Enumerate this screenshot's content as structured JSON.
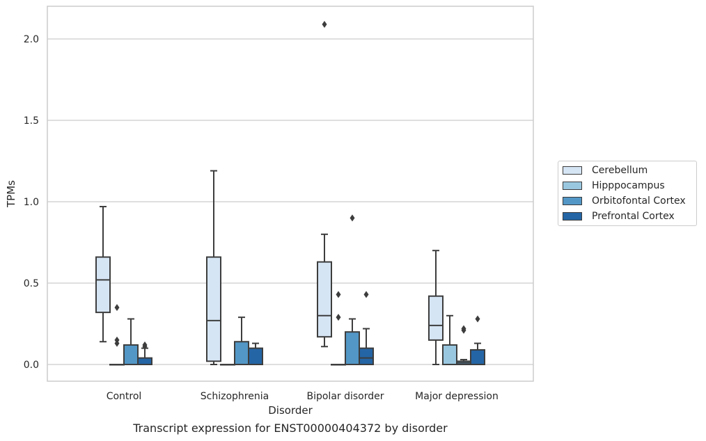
{
  "caption": "Transcript expression for ENST00000404372 by disorder",
  "chart_data": {
    "type": "box",
    "title": "",
    "xlabel": "Disorder",
    "ylabel": "TPMs",
    "ylim": [
      -0.1,
      2.2
    ],
    "yticks": [
      "0.0",
      "0.5",
      "1.0",
      "1.5",
      "2.0"
    ],
    "grid": "horizontal",
    "legend_position": "right",
    "categories": [
      "Control",
      "Schizophrenia",
      "Bipolar disorder",
      "Major depression"
    ],
    "series": [
      {
        "name": "Cerebellum",
        "color": "#d6e5f4",
        "boxes": [
          {
            "whislo": 0.14,
            "q1": 0.32,
            "med": 0.52,
            "q3": 0.66,
            "whishi": 0.97,
            "fliers": []
          },
          {
            "whislo": 0.0,
            "q1": 0.02,
            "med": 0.27,
            "q3": 0.66,
            "whishi": 1.19,
            "fliers": []
          },
          {
            "whislo": 0.11,
            "q1": 0.17,
            "med": 0.3,
            "q3": 0.63,
            "whishi": 0.8,
            "fliers": [
              2.09
            ]
          },
          {
            "whislo": 0.0,
            "q1": 0.15,
            "med": 0.24,
            "q3": 0.42,
            "whishi": 0.7,
            "fliers": []
          }
        ]
      },
      {
        "name": "Hipppocampus",
        "color": "#9ac7e0",
        "boxes": [
          {
            "whislo": 0.0,
            "q1": 0.0,
            "med": 0.0,
            "q3": 0.0,
            "whishi": 0.0,
            "fliers": [
              0.13,
              0.15,
              0.35
            ]
          },
          {
            "whislo": 0.0,
            "q1": 0.0,
            "med": 0.0,
            "q3": 0.0,
            "whishi": 0.0,
            "fliers": []
          },
          {
            "whislo": 0.0,
            "q1": 0.0,
            "med": 0.0,
            "q3": 0.0,
            "whishi": 0.0,
            "fliers": [
              0.29,
              0.43
            ]
          },
          {
            "whislo": 0.0,
            "q1": 0.0,
            "med": 0.0,
            "q3": 0.12,
            "whishi": 0.3,
            "fliers": []
          }
        ]
      },
      {
        "name": "Orbitofontal Cortex",
        "color": "#5297c6",
        "boxes": [
          {
            "whislo": 0.0,
            "q1": 0.0,
            "med": 0.0,
            "q3": 0.12,
            "whishi": 0.28,
            "fliers": []
          },
          {
            "whislo": 0.0,
            "q1": 0.0,
            "med": 0.0,
            "q3": 0.14,
            "whishi": 0.29,
            "fliers": []
          },
          {
            "whislo": 0.0,
            "q1": 0.0,
            "med": 0.0,
            "q3": 0.2,
            "whishi": 0.28,
            "fliers": [
              0.9
            ]
          },
          {
            "whislo": 0.0,
            "q1": 0.0,
            "med": 0.01,
            "q3": 0.02,
            "whishi": 0.03,
            "fliers": [
              0.21,
              0.22
            ]
          }
        ]
      },
      {
        "name": "Prefrontal Cortex",
        "color": "#2465a5",
        "boxes": [
          {
            "whislo": 0.0,
            "q1": 0.0,
            "med": 0.0,
            "q3": 0.04,
            "whishi": 0.1,
            "fliers": [
              0.11,
              0.12
            ]
          },
          {
            "whislo": 0.0,
            "q1": 0.0,
            "med": 0.0,
            "q3": 0.1,
            "whishi": 0.13,
            "fliers": []
          },
          {
            "whislo": 0.0,
            "q1": 0.0,
            "med": 0.04,
            "q3": 0.1,
            "whishi": 0.22,
            "fliers": [
              0.43
            ]
          },
          {
            "whislo": 0.0,
            "q1": 0.0,
            "med": 0.0,
            "q3": 0.09,
            "whishi": 0.13,
            "fliers": [
              0.28
            ]
          }
        ]
      }
    ]
  }
}
